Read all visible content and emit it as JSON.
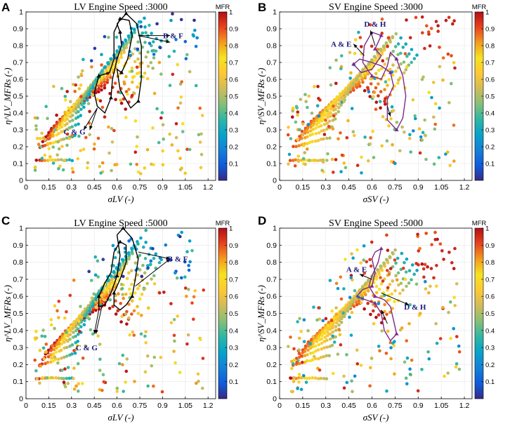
{
  "figure": {
    "colormap_stops": [
      "#352a87",
      "#0f5cdd",
      "#1481d6",
      "#06a4ca",
      "#2eb7a4",
      "#87bf77",
      "#d1bb59",
      "#fec832",
      "#f5e31f",
      "#f39c1e",
      "#e8431d",
      "#b20f17"
    ]
  },
  "chart_data": [
    {
      "panel": "A",
      "type": "scatter",
      "title": "LV Engine Speed :3000",
      "xlabel": "σLV (-)",
      "ylabel": "η^LV_MFRs (-)",
      "xlim": [
        0,
        1.25
      ],
      "ylim": [
        0,
        1
      ],
      "xticks": [
        "0",
        "0.15",
        "0.3",
        "0.45",
        "0.6",
        "0.75",
        "0.9",
        "1.05",
        "1.2"
      ],
      "yticks": [
        "0",
        "0.1",
        "0.2",
        "0.3",
        "0.4",
        "0.5",
        "0.6",
        "0.7",
        "0.8",
        "0.9",
        "1"
      ],
      "colorbar": {
        "label": "MFR",
        "range": [
          0,
          1
        ],
        "ticks": [
          "0.1",
          "0.2",
          "0.3",
          "0.4",
          "0.5",
          "0.6",
          "0.7",
          "0.8",
          "0.9",
          "1"
        ]
      },
      "color_variable": "MFR",
      "annotations": [
        {
          "text": "B & F",
          "x": 0.97,
          "y": 0.86
        },
        {
          "text": "C & G",
          "x": 0.32,
          "y": 0.29
        }
      ],
      "loop_color": "#000000",
      "loop": [
        [
          0.6,
          0.93
        ],
        [
          0.66,
          0.99
        ],
        [
          0.73,
          0.93
        ],
        [
          0.76,
          0.8
        ],
        [
          0.76,
          0.6
        ],
        [
          0.74,
          0.47
        ],
        [
          0.69,
          0.43
        ],
        [
          0.62,
          0.54
        ],
        [
          0.6,
          0.66
        ],
        [
          0.63,
          0.64
        ],
        [
          0.67,
          0.72
        ],
        [
          0.7,
          0.86
        ],
        [
          0.68,
          0.95
        ],
        [
          0.62,
          0.96
        ],
        [
          0.58,
          0.88
        ],
        [
          0.58,
          0.72
        ],
        [
          0.55,
          0.64
        ],
        [
          0.48,
          0.62
        ],
        [
          0.45,
          0.52
        ],
        [
          0.47,
          0.44
        ],
        [
          0.52,
          0.4
        ],
        [
          0.56,
          0.49
        ],
        [
          0.57,
          0.6
        ],
        [
          0.6,
          0.72
        ],
        [
          0.63,
          0.8
        ],
        [
          0.62,
          0.88
        ],
        [
          0.6,
          0.93
        ]
      ],
      "arrows": [
        [
          [
            0.74,
            0.86
          ],
          [
            0.95,
            0.86
          ]
        ],
        [
          [
            0.74,
            0.86
          ],
          [
            0.95,
            0.82
          ]
        ],
        [
          [
            0.47,
            0.43
          ],
          [
            0.38,
            0.3
          ]
        ],
        [
          [
            0.47,
            0.43
          ],
          [
            0.42,
            0.3
          ]
        ]
      ]
    },
    {
      "panel": "B",
      "type": "scatter",
      "title": "SV Engine Speed :3000",
      "xlabel": "σSV (-)",
      "ylabel": "η^SV_MFRs (-)",
      "xlim": [
        0,
        1.25
      ],
      "ylim": [
        0,
        1
      ],
      "xticks": [
        "0",
        "0.15",
        "0.3",
        "0.45",
        "0.6",
        "0.75",
        "0.9",
        "1.05",
        "1.2"
      ],
      "yticks": [
        "0",
        "0.1",
        "0.2",
        "0.3",
        "0.4",
        "0.5",
        "0.6",
        "0.7",
        "0.8",
        "0.9",
        "1"
      ],
      "colorbar": {
        "label": "MFR",
        "range": [
          0,
          1
        ],
        "ticks": [
          "0.1",
          "0.2",
          "0.3",
          "0.4",
          "0.5",
          "0.6",
          "0.7",
          "0.8",
          "0.9",
          "1"
        ]
      },
      "color_variable": "MFR",
      "annotations": [
        {
          "text": "D & H",
          "x": 0.62,
          "y": 0.93
        },
        {
          "text": "A & E",
          "x": 0.4,
          "y": 0.81
        }
      ],
      "loop_color": "#7b2a8e",
      "loop": [
        [
          0.62,
          0.78
        ],
        [
          0.66,
          0.86
        ],
        [
          0.6,
          0.88
        ],
        [
          0.55,
          0.8
        ],
        [
          0.54,
          0.7
        ],
        [
          0.6,
          0.62
        ],
        [
          0.66,
          0.6
        ],
        [
          0.7,
          0.68
        ],
        [
          0.72,
          0.76
        ],
        [
          0.76,
          0.72
        ],
        [
          0.8,
          0.62
        ],
        [
          0.82,
          0.5
        ],
        [
          0.8,
          0.37
        ],
        [
          0.76,
          0.3
        ],
        [
          0.7,
          0.36
        ],
        [
          0.7,
          0.48
        ],
        [
          0.74,
          0.56
        ],
        [
          0.72,
          0.64
        ],
        [
          0.66,
          0.68
        ],
        [
          0.6,
          0.7
        ],
        [
          0.52,
          0.72
        ],
        [
          0.48,
          0.69
        ],
        [
          0.53,
          0.64
        ],
        [
          0.6,
          0.66
        ],
        [
          0.66,
          0.74
        ],
        [
          0.62,
          0.78
        ]
      ],
      "arrows": [
        [
          [
            0.62,
            0.8
          ],
          [
            0.59,
            0.89
          ]
        ],
        [
          [
            0.55,
            0.74
          ],
          [
            0.48,
            0.81
          ]
        ],
        [
          [
            0.7,
            0.44
          ],
          [
            0.72,
            0.38
          ]
        ]
      ]
    },
    {
      "panel": "C",
      "type": "scatter",
      "title": "LV Engine Speed :5000",
      "xlabel": "σLV (-)",
      "ylabel": "η^LV_MFRs (-)",
      "xlim": [
        0,
        1.25
      ],
      "ylim": [
        0,
        1
      ],
      "xticks": [
        "0",
        "0.15",
        "0.3",
        "0.45",
        "0.6",
        "0.75",
        "0.9",
        "1.05",
        "1.2"
      ],
      "yticks": [
        "0",
        "0.1",
        "0.2",
        "0.3",
        "0.4",
        "0.5",
        "0.6",
        "0.7",
        "0.8",
        "0.9",
        "1"
      ],
      "colorbar": {
        "label": "MFR",
        "range": [
          0,
          1
        ],
        "ticks": [
          "0.1",
          "0.2",
          "0.3",
          "0.4",
          "0.5",
          "0.6",
          "0.7",
          "0.8",
          "0.9",
          "1"
        ]
      },
      "color_variable": "MFR",
      "annotations": [
        {
          "text": "B & F",
          "x": 1.0,
          "y": 0.82
        },
        {
          "text": "C & G",
          "x": 0.4,
          "y": 0.3
        }
      ],
      "loop_color": "#000000",
      "loop": [
        [
          0.6,
          0.96
        ],
        [
          0.64,
          1.0
        ],
        [
          0.7,
          0.94
        ],
        [
          0.74,
          0.82
        ],
        [
          0.72,
          0.7
        ],
        [
          0.7,
          0.6
        ],
        [
          0.66,
          0.55
        ],
        [
          0.62,
          0.52
        ],
        [
          0.58,
          0.55
        ],
        [
          0.58,
          0.62
        ],
        [
          0.62,
          0.7
        ],
        [
          0.66,
          0.8
        ],
        [
          0.66,
          0.9
        ],
        [
          0.62,
          0.92
        ],
        [
          0.58,
          0.86
        ],
        [
          0.56,
          0.74
        ],
        [
          0.52,
          0.68
        ],
        [
          0.48,
          0.6
        ],
        [
          0.48,
          0.54
        ],
        [
          0.52,
          0.55
        ],
        [
          0.56,
          0.62
        ],
        [
          0.6,
          0.72
        ],
        [
          0.62,
          0.84
        ],
        [
          0.6,
          0.96
        ]
      ],
      "arrows": [
        [
          [
            0.74,
            0.86
          ],
          [
            0.95,
            0.82
          ]
        ],
        [
          [
            0.72,
            0.66
          ],
          [
            0.95,
            0.82
          ]
        ],
        [
          [
            0.48,
            0.52
          ],
          [
            0.45,
            0.38
          ]
        ],
        [
          [
            0.5,
            0.54
          ],
          [
            0.46,
            0.38
          ]
        ]
      ]
    },
    {
      "panel": "D",
      "type": "scatter",
      "title": "SV Engine Speed :5000",
      "xlabel": "σSV (-)",
      "ylabel": "η^SV_MFRs (-)",
      "xlim": [
        0,
        1.25
      ],
      "ylim": [
        0,
        1
      ],
      "xticks": [
        "0",
        "0.15",
        "0.3",
        "0.45",
        "0.6",
        "0.75",
        "0.9",
        "1.05",
        "1.2"
      ],
      "yticks": [
        "0",
        "0.1",
        "0.2",
        "0.3",
        "0.4",
        "0.5",
        "0.6",
        "0.7",
        "0.8",
        "0.9",
        "1"
      ],
      "colorbar": {
        "label": "MFR",
        "range": [
          0,
          1
        ],
        "ticks": [
          "0.1",
          "0.2",
          "0.3",
          "0.4",
          "0.5",
          "0.6",
          "0.7",
          "0.8",
          "0.9",
          "1"
        ]
      },
      "color_variable": "MFR",
      "annotations": [
        {
          "text": "A & E",
          "x": 0.5,
          "y": 0.76
        },
        {
          "text": "D & H",
          "x": 0.88,
          "y": 0.54
        }
      ],
      "loop_color": "#7b2a8e",
      "loop": [
        [
          0.62,
          0.86
        ],
        [
          0.66,
          0.88
        ],
        [
          0.64,
          0.8
        ],
        [
          0.6,
          0.72
        ],
        [
          0.58,
          0.66
        ],
        [
          0.62,
          0.6
        ],
        [
          0.68,
          0.58
        ],
        [
          0.72,
          0.54
        ],
        [
          0.74,
          0.46
        ],
        [
          0.76,
          0.38
        ],
        [
          0.72,
          0.34
        ],
        [
          0.68,
          0.4
        ],
        [
          0.66,
          0.5
        ],
        [
          0.62,
          0.56
        ],
        [
          0.56,
          0.58
        ],
        [
          0.5,
          0.6
        ],
        [
          0.54,
          0.64
        ],
        [
          0.6,
          0.66
        ],
        [
          0.62,
          0.74
        ],
        [
          0.6,
          0.82
        ],
        [
          0.62,
          0.86
        ]
      ],
      "arrows": [
        [
          [
            0.6,
            0.7
          ],
          [
            0.52,
            0.73
          ]
        ],
        [
          [
            0.66,
            0.62
          ],
          [
            0.84,
            0.55
          ]
        ],
        [
          [
            0.7,
            0.44
          ],
          [
            0.66,
            0.52
          ]
        ]
      ]
    }
  ]
}
